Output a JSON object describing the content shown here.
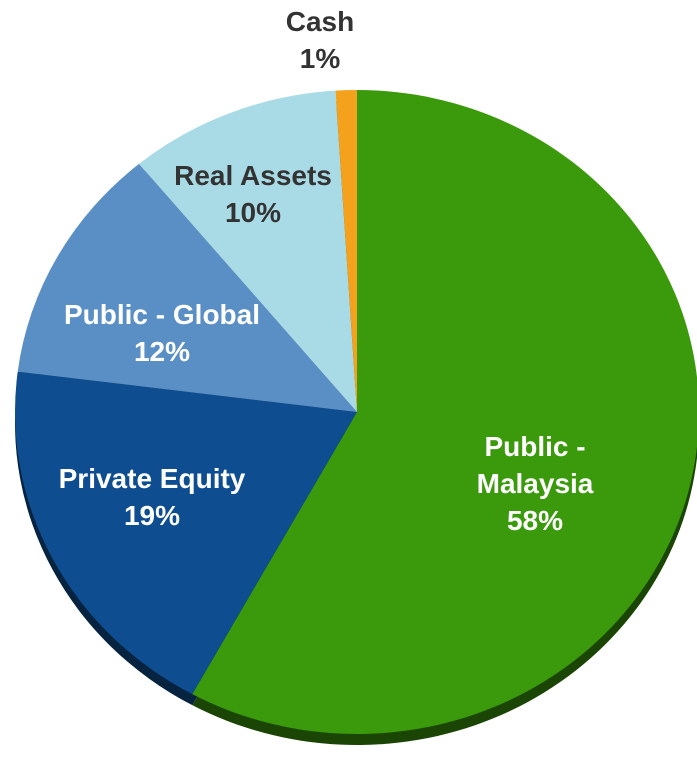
{
  "chart_data": {
    "type": "pie",
    "categories": [
      "Public - Malaysia",
      "Private Equity",
      "Public - Global",
      "Real Assets",
      "Cash"
    ],
    "values": [
      58,
      19,
      12,
      10,
      1
    ],
    "value_labels": [
      "58%",
      "19%",
      "12%",
      "10%",
      "1%"
    ],
    "colors": [
      "#3a9a0b",
      "#0e4d8f",
      "#5a8fc5",
      "#a9dbe7",
      "#f4a11c"
    ],
    "label_colors": [
      "#ffffff",
      "#ffffff",
      "#ffffff",
      "#333333",
      "#333333"
    ]
  }
}
